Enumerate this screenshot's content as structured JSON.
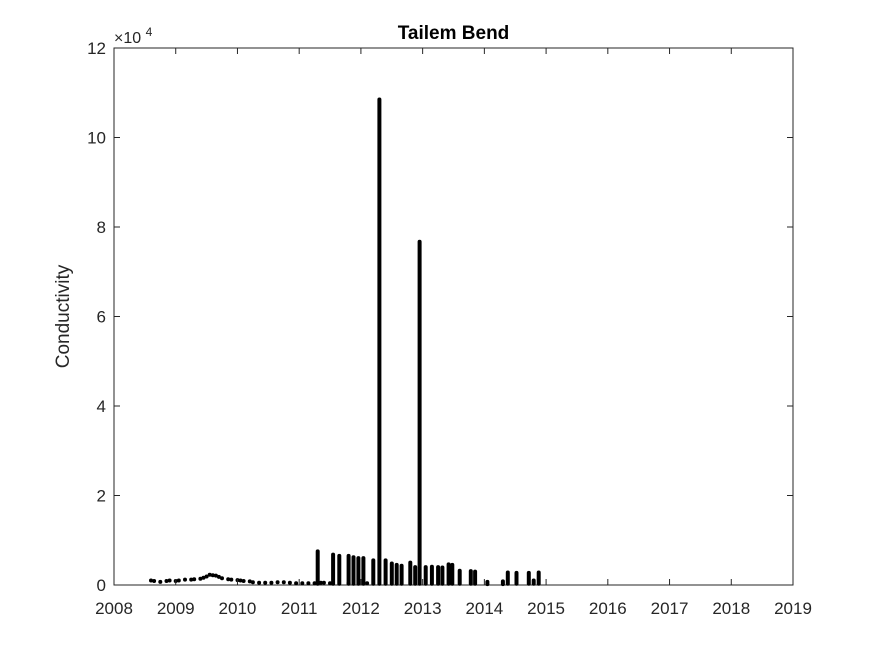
{
  "chart_data": {
    "type": "scatter",
    "title": "Tailem Bend",
    "xlabel": "",
    "ylabel": "Conductivity",
    "xlim": [
      2008,
      2019
    ],
    "ylim": [
      0,
      120000
    ],
    "x_ticks": [
      2008,
      2009,
      2010,
      2011,
      2012,
      2013,
      2014,
      2015,
      2016,
      2017,
      2018,
      2019
    ],
    "x_tick_labels": [
      "2008",
      "2009",
      "2010",
      "2011",
      "2012",
      "2013",
      "2014",
      "2015",
      "2016",
      "2017",
      "2018",
      "2019"
    ],
    "y_ticks": [
      0,
      20000,
      40000,
      60000,
      80000,
      100000,
      120000
    ],
    "y_tick_labels": [
      "0",
      "2",
      "4",
      "6",
      "8",
      "10",
      "12"
    ],
    "y_exponent_label": "×10",
    "y_exponent_power": "4",
    "grid": false,
    "marker_color": "#000000",
    "series": [
      {
        "points": [
          [
            2008.6,
            1000
          ],
          [
            2008.65,
            900
          ],
          [
            2008.75,
            700
          ],
          [
            2008.85,
            900
          ],
          [
            2008.9,
            1000
          ],
          [
            2009.0,
            900
          ],
          [
            2009.05,
            1000
          ],
          [
            2009.15,
            1200
          ],
          [
            2009.25,
            1200
          ],
          [
            2009.3,
            1300
          ],
          [
            2009.4,
            1400
          ],
          [
            2009.45,
            1600
          ],
          [
            2009.5,
            1900
          ],
          [
            2009.55,
            2300
          ],
          [
            2009.6,
            2200
          ],
          [
            2009.65,
            2100
          ],
          [
            2009.7,
            1800
          ],
          [
            2009.75,
            1500
          ],
          [
            2009.85,
            1300
          ],
          [
            2009.9,
            1200
          ],
          [
            2010.0,
            1100
          ],
          [
            2010.05,
            1000
          ],
          [
            2010.1,
            900
          ],
          [
            2010.2,
            800
          ],
          [
            2010.25,
            600
          ],
          [
            2010.35,
            500
          ],
          [
            2010.45,
            500
          ],
          [
            2010.55,
            500
          ],
          [
            2010.65,
            600
          ],
          [
            2010.75,
            600
          ],
          [
            2010.85,
            500
          ],
          [
            2010.95,
            400
          ],
          [
            2011.05,
            400
          ],
          [
            2011.15,
            400
          ],
          [
            2011.25,
            400
          ],
          [
            2011.35,
            500
          ],
          [
            2011.4,
            500
          ],
          [
            2011.5,
            400
          ],
          [
            2011.8,
            400
          ],
          [
            2012.1,
            400
          ]
        ]
      }
    ],
    "spikes": [
      {
        "x": 2011.3,
        "y_min": 300,
        "y_max": 7500
      },
      {
        "x": 2011.55,
        "y_min": 300,
        "y_max": 6800
      },
      {
        "x": 2011.65,
        "y_min": 300,
        "y_max": 6500
      },
      {
        "x": 2011.8,
        "y_min": 300,
        "y_max": 6500
      },
      {
        "x": 2011.88,
        "y_min": 300,
        "y_max": 6200
      },
      {
        "x": 2011.96,
        "y_min": 300,
        "y_max": 6000
      },
      {
        "x": 2012.04,
        "y_min": 300,
        "y_max": 6000
      },
      {
        "x": 2012.2,
        "y_min": 300,
        "y_max": 5500
      },
      {
        "x": 2012.3,
        "y_min": 300,
        "y_max": 108500
      },
      {
        "x": 2012.4,
        "y_min": 300,
        "y_max": 5500
      },
      {
        "x": 2012.5,
        "y_min": 300,
        "y_max": 4800
      },
      {
        "x": 2012.58,
        "y_min": 300,
        "y_max": 4500
      },
      {
        "x": 2012.66,
        "y_min": 300,
        "y_max": 4300
      },
      {
        "x": 2012.8,
        "y_min": 300,
        "y_max": 5000
      },
      {
        "x": 2012.88,
        "y_min": 300,
        "y_max": 4000
      },
      {
        "x": 2012.95,
        "y_min": 300,
        "y_max": 76700
      },
      {
        "x": 2013.05,
        "y_min": 300,
        "y_max": 4000
      },
      {
        "x": 2013.15,
        "y_min": 300,
        "y_max": 4100
      },
      {
        "x": 2013.25,
        "y_min": 300,
        "y_max": 4000
      },
      {
        "x": 2013.32,
        "y_min": 300,
        "y_max": 3900
      },
      {
        "x": 2013.42,
        "y_min": 300,
        "y_max": 4600
      },
      {
        "x": 2013.48,
        "y_min": 300,
        "y_max": 4500
      },
      {
        "x": 2013.6,
        "y_min": 300,
        "y_max": 3200
      },
      {
        "x": 2013.78,
        "y_min": 300,
        "y_max": 3100
      },
      {
        "x": 2013.85,
        "y_min": 300,
        "y_max": 3000
      },
      {
        "x": 2014.05,
        "y_min": 200,
        "y_max": 700
      },
      {
        "x": 2014.3,
        "y_min": 200,
        "y_max": 800
      },
      {
        "x": 2014.38,
        "y_min": 300,
        "y_max": 2800
      },
      {
        "x": 2014.52,
        "y_min": 300,
        "y_max": 2700
      },
      {
        "x": 2014.72,
        "y_min": 300,
        "y_max": 2700
      },
      {
        "x": 2014.8,
        "y_min": 300,
        "y_max": 1000
      },
      {
        "x": 2014.88,
        "y_min": 300,
        "y_max": 2800
      }
    ]
  }
}
